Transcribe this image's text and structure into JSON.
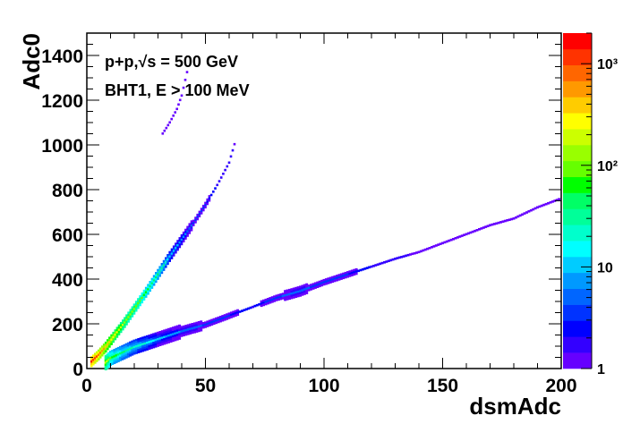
{
  "chart_data": {
    "type": "heatmap",
    "title": "",
    "xlabel": "dsmAdc",
    "ylabel": "Adc0",
    "xlim": [
      0,
      200
    ],
    "ylim": [
      0,
      1500
    ],
    "x_ticks": [
      0,
      50,
      100,
      150,
      200
    ],
    "y_ticks": [
      0,
      200,
      400,
      600,
      800,
      1000,
      1200,
      1400
    ],
    "z_scale": "log",
    "zlim": [
      1,
      2000
    ],
    "colorbar_ticks": [
      {
        "value": 1,
        "label": "1"
      },
      {
        "value": 10,
        "label": "10"
      },
      {
        "value": 100,
        "label": "10²"
      },
      {
        "value": 1000,
        "label": "10³"
      }
    ],
    "colorbar_colors": [
      "#6600ff",
      "#3300ff",
      "#0000ff",
      "#0033ff",
      "#0066ff",
      "#0099ff",
      "#00ccff",
      "#00ffff",
      "#00ffcc",
      "#00ff99",
      "#00ff66",
      "#00ff00",
      "#66ff00",
      "#99ff00",
      "#ccff00",
      "#ffff00",
      "#ffcc00",
      "#ff9900",
      "#ff6600",
      "#ff3300",
      "#ff0000"
    ],
    "annotations": [
      "p+p,√s = 500 GeV",
      "BHT1, E > 100 MeV"
    ],
    "grid": false,
    "legend": "colorbar-right",
    "bands": [
      {
        "name": "",
        "x": [
          2,
          5,
          8,
          12,
          16,
          20,
          25,
          30,
          35,
          40,
          45,
          50,
          55,
          60,
          63
        ],
        "y": [
          30,
          60,
          95,
          150,
          205,
          265,
          340,
          420,
          500,
          575,
          650,
          730,
          820,
          920,
          1030
        ],
        "z": [
          1500,
          800,
          400,
          250,
          150,
          120,
          60,
          40,
          12,
          8,
          4,
          3,
          2,
          2,
          1
        ]
      },
      {
        "name": "",
        "x": [
          8,
          10,
          15,
          20,
          30,
          40,
          50,
          60,
          70,
          80,
          90,
          100,
          110,
          120,
          130,
          140,
          150,
          160,
          170,
          180,
          190,
          200
        ],
        "y": [
          25,
          45,
          70,
          95,
          130,
          165,
          195,
          235,
          275,
          315,
          345,
          385,
          420,
          455,
          490,
          520,
          560,
          600,
          640,
          670,
          720,
          760
        ],
        "z": [
          200,
          80,
          40,
          25,
          10,
          6,
          4,
          3,
          2,
          4,
          5,
          3,
          3,
          2,
          2,
          1,
          1,
          1,
          1,
          1,
          1,
          1
        ]
      },
      {
        "name": "",
        "x": [
          32,
          35,
          38,
          40,
          43
        ],
        "y": [
          1050,
          1100,
          1160,
          1220,
          1360
        ],
        "z": [
          1,
          1,
          1,
          1,
          1
        ]
      }
    ]
  }
}
